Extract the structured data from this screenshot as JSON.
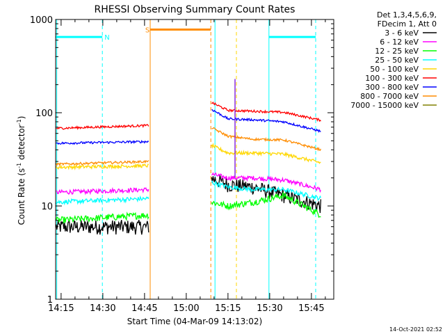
{
  "chart_data": {
    "type": "line",
    "title": "RHESSI Observing Summary Count Rates",
    "xlabel": "Start Time (04-Mar-09 14:13:02)",
    "ylabel_main": "Count Rate (s",
    "ylabel_sup1": "-1",
    "ylabel_mid": " detector",
    "ylabel_sup2": "-1",
    "ylabel_end": ")",
    "y_scale": "log",
    "ylim": [
      1,
      1000
    ],
    "xlim_minutes": [
      0,
      100
    ],
    "x_ticks": [
      {
        "label": "14:15",
        "minute": 1.97
      },
      {
        "label": "14:30",
        "minute": 16.97
      },
      {
        "label": "14:45",
        "minute": 31.97
      },
      {
        "label": "15:00",
        "minute": 46.97
      },
      {
        "label": "15:15",
        "minute": 61.97
      },
      {
        "label": "15:30",
        "minute": 76.97
      },
      {
        "label": "15:45",
        "minute": 91.97
      }
    ],
    "y_ticks": [
      {
        "value": 1,
        "label": "1",
        "sup": ""
      },
      {
        "value": 10,
        "label": "10",
        "sup": ""
      },
      {
        "value": 100,
        "label": "100",
        "sup": ""
      },
      {
        "value": 1000,
        "label": "1000",
        "sup": ""
      },
      {
        "value": 0.1,
        "label": "10",
        "sup": "-1",
        "hidden": true
      }
    ],
    "legend_header": [
      "Det 1,3,4,5,6,9,",
      "FDecim 1, Att 0"
    ],
    "legend_position": "right",
    "series": [
      {
        "name": "3 - 6 keV",
        "color": "#000000",
        "seg1": [
          6,
          6
        ],
        "seg2": [
          20,
          17,
          16,
          13,
          10
        ],
        "noise": 0.09
      },
      {
        "name": "6 - 12 keV",
        "color": "#ff00ff",
        "seg1": [
          14,
          15
        ],
        "seg2": [
          22,
          20,
          20,
          19,
          15
        ],
        "noise": 0.04
      },
      {
        "name": "12 - 25 keV",
        "color": "#00ff00",
        "seg1": [
          7,
          8
        ],
        "seg2": [
          11,
          10,
          11,
          13,
          8
        ],
        "noise": 0.06
      },
      {
        "name": "25 - 50 keV",
        "color": "#00ffff",
        "seg1": [
          11,
          12
        ],
        "seg2": [
          18,
          16,
          15,
          15,
          12
        ],
        "noise": 0.04
      },
      {
        "name": "50 - 100 keV",
        "color": "#ffd700",
        "seg1": [
          26,
          27
        ],
        "seg2": [
          45,
          37,
          37,
          36,
          29
        ],
        "noise": 0.03
      },
      {
        "name": "100 - 300 keV",
        "color": "#ff0000",
        "seg1": [
          68,
          73
        ],
        "seg2": [
          130,
          106,
          104,
          101,
          83
        ],
        "noise": 0.02
      },
      {
        "name": "300 - 800 keV",
        "color": "#0000ff",
        "seg1": [
          47,
          49
        ],
        "seg2": [
          110,
          86,
          84,
          80,
          63
        ],
        "noise": 0.02
      },
      {
        "name": "800 - 7000 keV",
        "color": "#ff8c00",
        "seg1": [
          28,
          30
        ],
        "seg2": [
          70,
          56,
          52,
          51,
          40
        ],
        "noise": 0.02
      },
      {
        "name": "7000 - 15000 keV",
        "color": "#808000",
        "seg1": [],
        "seg2": [],
        "noise": 0
      }
    ],
    "data_gap_minutes": [
      33.5,
      55.8
    ],
    "seg2_knots_minutes": [
      55.8,
      62,
      71,
      82,
      95.5
    ],
    "seg1_range_minutes": [
      0,
      33.5
    ],
    "spike": {
      "minute": 64.5,
      "value": 230,
      "color": "#8a2be2"
    },
    "night_bars": [
      {
        "label": "N",
        "start": 0,
        "end": 16.8,
        "value": 650,
        "color": "#00ffff",
        "label_minute": 18.5
      },
      {
        "label": "",
        "start": 76.7,
        "end": 93.5,
        "value": 650,
        "color": "#00ffff",
        "label_minute": null
      }
    ],
    "saa_bars": [
      {
        "label": "S",
        "start": 34.0,
        "end": 55.8,
        "value": 780,
        "color": "#ff8c00",
        "label_minute": 33.0
      }
    ],
    "night_markers": [
      {
        "minute": 0.4,
        "style": "solid",
        "color": "#00ffff"
      },
      {
        "minute": 16.8,
        "style": "dashed",
        "color": "#00ffff"
      },
      {
        "minute": 76.7,
        "style": "solid",
        "color": "#00ffff"
      },
      {
        "minute": 93.5,
        "style": "dashed",
        "color": "#00ffff"
      },
      {
        "minute": 57.3,
        "style": "solid",
        "color": "#00ffff"
      }
    ],
    "saa_markers": [
      {
        "minute": 34.0,
        "style": "solid",
        "color": "#ff8c00"
      },
      {
        "minute": 55.8,
        "style": "dashed",
        "color": "#ff8c00"
      }
    ],
    "other_markers": [
      {
        "minute": 65.0,
        "style": "dashed",
        "color": "#ffd700"
      }
    ]
  },
  "footer_timestamp": "14-Oct-2021 02:52"
}
